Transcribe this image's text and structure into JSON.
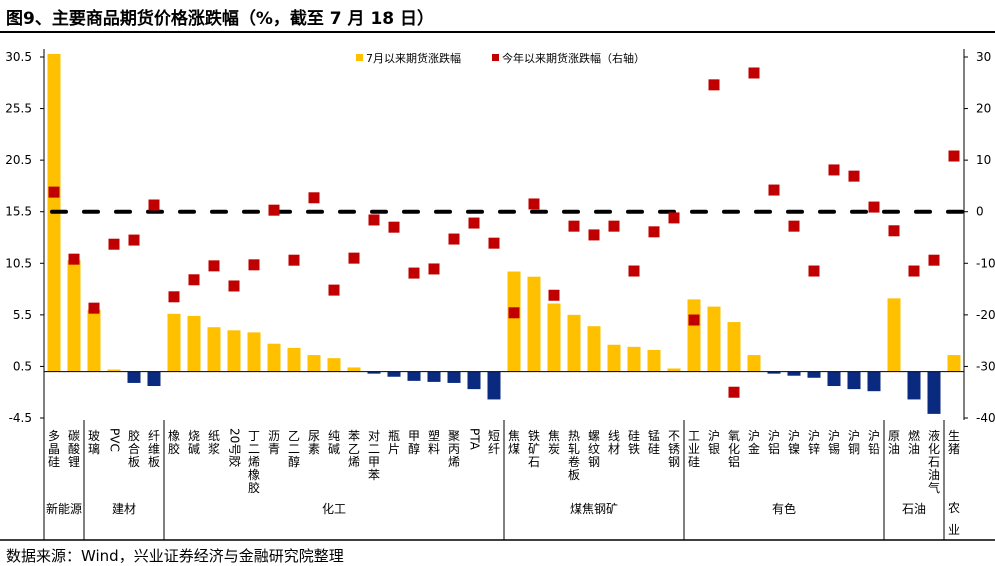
{
  "title": "图9、主要商品期货价格涨跌幅（%，截至 7 月 18 日）",
  "source": "数据来源：Wind，兴业证券经济与金融研究院整理",
  "chart_data": {
    "type": "bar",
    "title": "图9、主要商品期货价格涨跌幅（%，截至 7 月 18 日）",
    "categories": [
      "多晶硅",
      "碳酸锂",
      "玻璃",
      "PVC",
      "胶合板",
      "纤维板",
      "橡胶",
      "烧碱",
      "纸浆",
      "20号胶",
      "丁二烯橡胶",
      "沥青",
      "乙二醇",
      "尿素",
      "纯碱",
      "苯乙烯",
      "对二甲苯",
      "瓶片",
      "甲醇",
      "塑料",
      "聚丙烯",
      "PTA",
      "短纤",
      "焦煤",
      "铁矿石",
      "焦炭",
      "热轧卷板",
      "螺纹钢",
      "线材",
      "硅铁",
      "锰硅",
      "不锈钢",
      "工业硅",
      "沪银",
      "氧化铝",
      "沪金",
      "沪铝",
      "沪镍",
      "沪锌",
      "沪锡",
      "沪铜",
      "沪铅",
      "原油",
      "燃油",
      "液化石油气",
      "生猪"
    ],
    "groups": [
      {
        "name": "新能源",
        "count": 2
      },
      {
        "name": "建材",
        "count": 4
      },
      {
        "name": "化工",
        "count": 17
      },
      {
        "name": "煤焦钢矿",
        "count": 9
      },
      {
        "name": "有色",
        "count": 10
      },
      {
        "name": "石油",
        "count": 3
      },
      {
        "name": "农业",
        "count": 1
      }
    ],
    "series": [
      {
        "name": "7月以来期货涨跌幅",
        "axis": "left",
        "kind": "bar",
        "color_pos": "#FFC000",
        "color_neg": "#0A2A7F",
        "values": [
          30.8,
          10.8,
          6.0,
          0.2,
          -1.1,
          -1.4,
          5.6,
          5.4,
          4.3,
          4.0,
          3.8,
          2.7,
          2.3,
          1.6,
          1.3,
          0.4,
          -0.2,
          -0.5,
          -0.9,
          -1.0,
          -1.1,
          -1.7,
          -2.7,
          9.7,
          9.2,
          6.6,
          5.5,
          4.4,
          2.6,
          2.4,
          2.1,
          0.3,
          7.0,
          6.3,
          4.8,
          1.6,
          -0.2,
          -0.4,
          -0.6,
          -1.4,
          -1.7,
          -1.9,
          7.1,
          -2.7,
          -4.1,
          1.6
        ]
      },
      {
        "name": "今年以来期货涨跌幅（右轴）",
        "axis": "right",
        "kind": "marker",
        "color": "#C00000",
        "values": [
          3.8,
          -9.2,
          -18.7,
          -6.3,
          -5.5,
          1.3,
          -16.5,
          -13.2,
          -10.5,
          -14.4,
          -10.3,
          0.3,
          -9.4,
          2.7,
          -15.2,
          -9.0,
          -1.6,
          -3.0,
          -11.9,
          -11.1,
          -5.3,
          -2.2,
          -6.1,
          -19.6,
          1.5,
          -16.2,
          -2.8,
          -4.5,
          -2.8,
          -11.5,
          -3.9,
          -1.2,
          -21.0,
          24.6,
          -35.0,
          26.9,
          4.2,
          -2.8,
          -11.5,
          8.1,
          6.9,
          0.9,
          -3.7,
          -11.5,
          -9.4,
          10.8
        ]
      }
    ],
    "left_axis": {
      "ylim": [
        -4.5,
        30.5
      ],
      "ticks": [
        "30.5",
        "25.5",
        "20.5",
        "15.5",
        "10.5",
        "5.5",
        "0.5",
        "-4.5"
      ]
    },
    "right_axis": {
      "ylim": [
        -40,
        30
      ],
      "ticks": [
        "30",
        "20",
        "10",
        "0",
        "-10",
        "-20",
        "-30",
        "-40"
      ]
    },
    "reference_line": {
      "axis": "right",
      "value": 0,
      "style": "dashed",
      "color": "#000000"
    },
    "legend_position": "top",
    "grid": false
  }
}
